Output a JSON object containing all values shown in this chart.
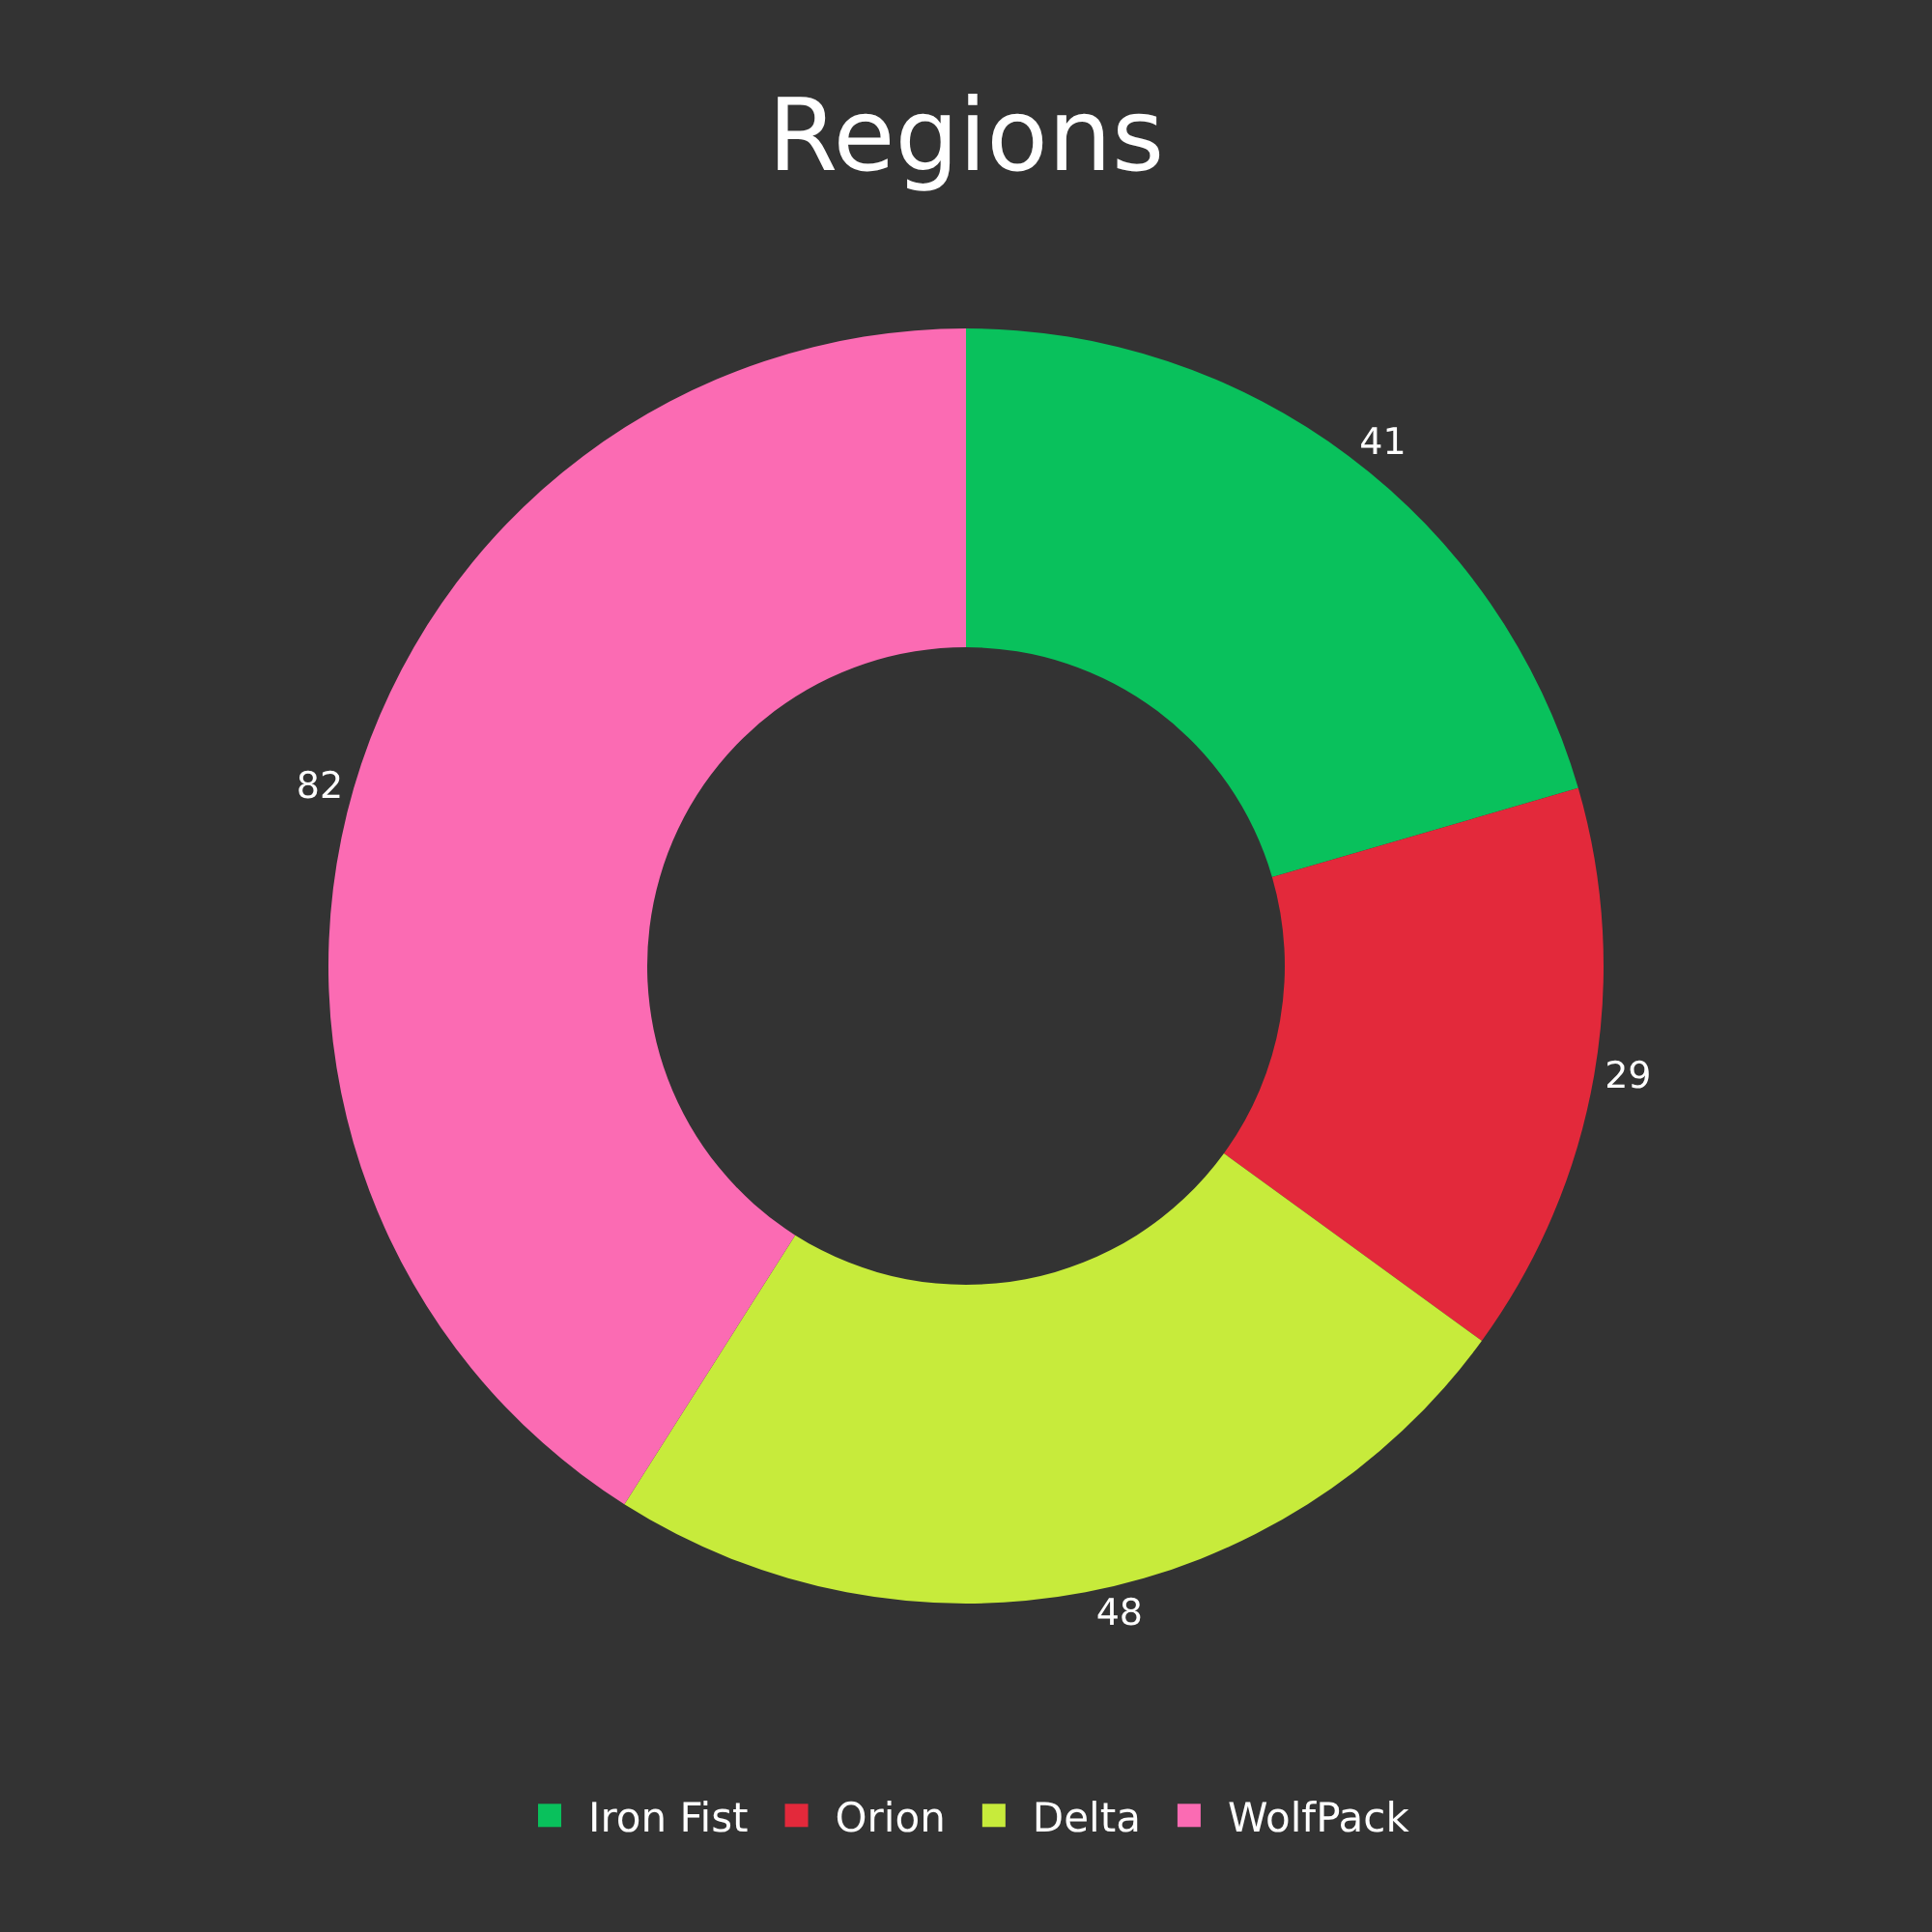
{
  "chart_data": {
    "type": "donut",
    "title": "Regions",
    "categories": [
      "Iron Fist",
      "Orion",
      "Delta",
      "WolfPack"
    ],
    "values": [
      41,
      29,
      48,
      82
    ],
    "colors": [
      "#09c15c",
      "#e3293b",
      "#c7eb3b",
      "#fb6bb3"
    ],
    "data_labels": true,
    "legend": "bottom"
  }
}
